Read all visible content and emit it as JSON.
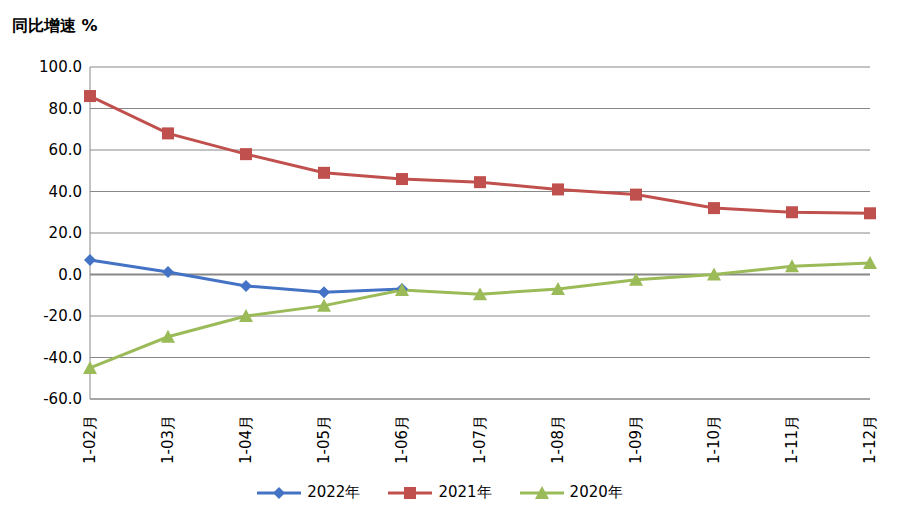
{
  "chart_data": {
    "type": "line",
    "y_label": "同比增速 %",
    "categories": [
      "1-02月",
      "1-03月",
      "1-04月",
      "1-05月",
      "1-06月",
      "1-07月",
      "1-08月",
      "1-09月",
      "1-10月",
      "1-11月",
      "1-12月"
    ],
    "series": [
      {
        "name": "2022年",
        "color": "#4472C4",
        "marker": "diamond",
        "values": [
          7.0,
          1.2,
          -5.5,
          -8.5,
          -7.0,
          null,
          null,
          null,
          null,
          null,
          null
        ]
      },
      {
        "name": "2021年",
        "color": "#C0504D",
        "marker": "square",
        "values": [
          86.0,
          68.0,
          58.0,
          49.0,
          46.0,
          44.5,
          41.0,
          38.5,
          32.0,
          30.0,
          29.5
        ]
      },
      {
        "name": "2020年",
        "color": "#9BBB59",
        "marker": "triangle",
        "values": [
          -45.0,
          -30.0,
          -20.0,
          -15.0,
          -7.5,
          -9.5,
          -7.0,
          -2.5,
          0.0,
          4.0,
          5.5
        ]
      }
    ],
    "ylim": [
      -60,
      100
    ],
    "yticks": [
      {
        "value": -60,
        "label": "-60.0"
      },
      {
        "value": -40,
        "label": "-40.0"
      },
      {
        "value": -20,
        "label": "-20.0"
      },
      {
        "value": 0,
        "label": "0.0"
      },
      {
        "value": 20,
        "label": "20.0"
      },
      {
        "value": 40,
        "label": "40.0"
      },
      {
        "value": 60,
        "label": "60.0"
      },
      {
        "value": 80,
        "label": "80.0"
      },
      {
        "value": 100,
        "label": "100.0"
      }
    ],
    "grid": true,
    "legend": "bottom"
  }
}
